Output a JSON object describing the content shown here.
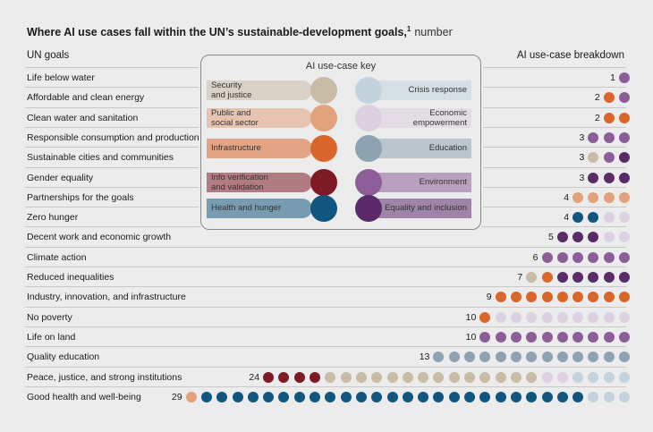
{
  "title": {
    "text": "Where AI use cases fall within the UN’s sustainable-development goals,",
    "footnote": "1",
    "unit": "number"
  },
  "headers": {
    "left": "UN goals",
    "right": "AI use-case breakdown"
  },
  "colors": {
    "security": "#c8bca6",
    "public": "#e2a27b",
    "infrastructure": "#d9662c",
    "info": "#7d1a24",
    "health": "#11567f",
    "crisis": "#c3d3dd",
    "economic": "#ddd0e0",
    "education": "#8ea3b1",
    "environment": "#8d5d97",
    "equality": "#5a2a69"
  },
  "key": {
    "title": "AI use-case key",
    "items": [
      {
        "id": "security",
        "label": "Security and justice",
        "lines": [
          "Security",
          "and justice"
        ],
        "side": "left"
      },
      {
        "id": "public",
        "label": "Public and social sector",
        "lines": [
          "Public and",
          "social sector"
        ],
        "side": "left"
      },
      {
        "id": "infrastructure",
        "label": "Infrastructure",
        "lines": [
          "Infrastructure"
        ],
        "side": "left"
      },
      {
        "id": "info",
        "label": "Info verification and validation",
        "lines": [
          "Info verification",
          "and validation"
        ],
        "side": "left"
      },
      {
        "id": "health",
        "label": "Health and hunger",
        "lines": [
          "Health and hunger"
        ],
        "side": "left"
      },
      {
        "id": "crisis",
        "label": "Crisis response",
        "lines": [
          "Crisis response"
        ],
        "side": "right"
      },
      {
        "id": "economic",
        "label": "Economic empowerment",
        "lines": [
          "Economic",
          "empowerment"
        ],
        "side": "right"
      },
      {
        "id": "education",
        "label": "Education",
        "lines": [
          "Education"
        ],
        "side": "right"
      },
      {
        "id": "environment",
        "label": "Environment",
        "lines": [
          "Environment"
        ],
        "side": "right"
      },
      {
        "id": "equality",
        "label": "Equality and inclusion",
        "lines": [
          "Equality and inclusion"
        ],
        "side": "right"
      }
    ]
  },
  "chart_data": {
    "type": "dot-matrix",
    "title": "Where AI use cases fall within the UN’s sustainable-development goals, number",
    "categories": [
      "Life below water",
      "Affordable and clean energy",
      "Clean water and sanitation",
      "Responsible consumption and production",
      "Sustainable cities and communities",
      "Gender equality",
      "Partnerships for the goals",
      "Zero hunger",
      "Decent work and economic growth",
      "Climate action",
      "Reduced inequalities",
      "Industry, innovation, and infrastructure",
      "No poverty",
      "Life on land",
      "Quality education",
      "Peace, justice, and strong institutions",
      "Good health and well-being"
    ],
    "rows": [
      {
        "goal": "Life below water",
        "count": 1,
        "dots": [
          "environment"
        ]
      },
      {
        "goal": "Affordable and clean energy",
        "count": 2,
        "dots": [
          "infrastructure",
          "environment"
        ]
      },
      {
        "goal": "Clean water and sanitation",
        "count": 2,
        "dots": [
          "infrastructure",
          "infrastructure"
        ]
      },
      {
        "goal": "Responsible consumption and production",
        "count": 3,
        "dots": [
          "environment",
          "environment",
          "environment"
        ]
      },
      {
        "goal": "Sustainable cities and communities",
        "count": 3,
        "dots": [
          "security",
          "environment",
          "equality"
        ]
      },
      {
        "goal": "Gender equality",
        "count": 3,
        "dots": [
          "equality",
          "equality",
          "equality"
        ]
      },
      {
        "goal": "Partnerships for the goals",
        "count": 4,
        "dots": [
          "public",
          "public",
          "public",
          "public"
        ]
      },
      {
        "goal": "Zero hunger",
        "count": 4,
        "dots": [
          "health",
          "health",
          "economic",
          "economic"
        ]
      },
      {
        "goal": "Decent work and economic growth",
        "count": 5,
        "dots": [
          "equality",
          "equality",
          "equality",
          "economic",
          "economic"
        ]
      },
      {
        "goal": "Climate action",
        "count": 6,
        "dots": [
          "environment",
          "environment",
          "environment",
          "environment",
          "environment",
          "environment"
        ]
      },
      {
        "goal": "Reduced inequalities",
        "count": 7,
        "dots": [
          "security",
          "infrastructure",
          "equality",
          "equality",
          "equality",
          "equality",
          "equality"
        ]
      },
      {
        "goal": "Industry, innovation, and infrastructure",
        "count": 9,
        "dots": [
          "infrastructure",
          "infrastructure",
          "infrastructure",
          "infrastructure",
          "infrastructure",
          "infrastructure",
          "infrastructure",
          "infrastructure",
          "infrastructure"
        ]
      },
      {
        "goal": "No poverty",
        "count": 10,
        "dots": [
          "infrastructure",
          "economic",
          "economic",
          "economic",
          "economic",
          "economic",
          "economic",
          "economic",
          "economic",
          "economic"
        ]
      },
      {
        "goal": "Life on land",
        "count": 10,
        "dots": [
          "environment",
          "environment",
          "environment",
          "environment",
          "environment",
          "environment",
          "environment",
          "environment",
          "environment",
          "environment"
        ]
      },
      {
        "goal": "Quality education",
        "count": 13,
        "dots": [
          "education",
          "education",
          "education",
          "education",
          "education",
          "education",
          "education",
          "education",
          "education",
          "education",
          "education",
          "education",
          "education"
        ]
      },
      {
        "goal": "Peace, justice, and strong institutions",
        "count": 24,
        "dots": [
          "info",
          "info",
          "info",
          "info",
          "security",
          "security",
          "security",
          "security",
          "security",
          "security",
          "security",
          "security",
          "security",
          "security",
          "security",
          "security",
          "security",
          "security",
          "economic",
          "economic",
          "crisis",
          "crisis",
          "crisis",
          "crisis"
        ]
      },
      {
        "goal": "Good health and well-being",
        "count": 29,
        "dots": [
          "public",
          "health",
          "health",
          "health",
          "health",
          "health",
          "health",
          "health",
          "health",
          "health",
          "health",
          "health",
          "health",
          "health",
          "health",
          "health",
          "health",
          "health",
          "health",
          "health",
          "health",
          "health",
          "health",
          "health",
          "health",
          "health",
          "crisis",
          "crisis",
          "crisis"
        ]
      }
    ]
  }
}
